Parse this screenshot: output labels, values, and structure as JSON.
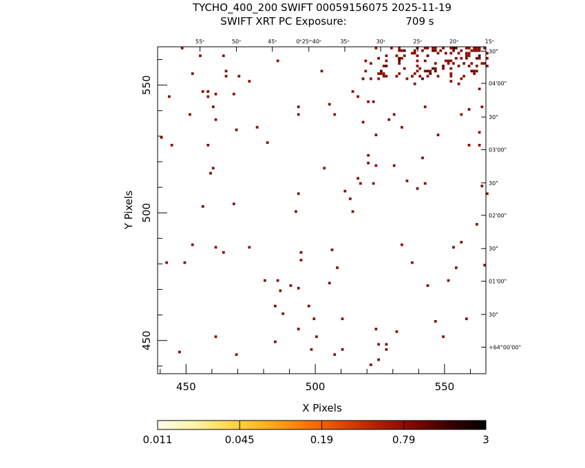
{
  "header": {
    "title_line1": "TYCHO_400_200 SWIFT 00059156075 2025-11-19",
    "title_line2": "SWIFT XRT PC Exposure:",
    "exposure_value": "709 s"
  },
  "colors": {
    "background": "#ffffff",
    "event": "#8b0d00",
    "event_dark": "#5a0000",
    "frame": "#000000"
  },
  "chart_data": {
    "type": "heatmap",
    "xlabel": "X Pixels",
    "ylabel": "Y Pixels",
    "xlim": [
      439,
      566
    ],
    "ylim": [
      437,
      565
    ],
    "x_ticks": [
      450,
      500,
      550
    ],
    "y_ticks": [
      450,
      500,
      550
    ],
    "ra_ticks": [
      {
        "x": 455.4,
        "label": "55ˢ"
      },
      {
        "x": 469.5,
        "label": "50ˢ"
      },
      {
        "x": 483.4,
        "label": "45ˢ"
      },
      {
        "x": 497.5,
        "label": "0ʰ25ᵐ40ˢ"
      },
      {
        "x": 511.4,
        "label": "35ˢ"
      },
      {
        "x": 525.3,
        "label": "30ˢ"
      },
      {
        "x": 539.6,
        "label": "25ˢ"
      },
      {
        "x": 553.6,
        "label": "20ˢ"
      },
      {
        "x": 567.4,
        "label": "15ˢ"
      }
    ],
    "dec_ticks": [
      {
        "y": 563.3,
        "label": "30\""
      },
      {
        "y": 550.7,
        "label": "04'00\""
      },
      {
        "y": 537.5,
        "label": "30\""
      },
      {
        "y": 524.7,
        "label": "03'00\""
      },
      {
        "y": 511.7,
        "label": "30\""
      },
      {
        "y": 499.0,
        "label": "02'00\""
      },
      {
        "y": 486.0,
        "label": "30\""
      },
      {
        "y": 473.2,
        "label": "01'00\""
      },
      {
        "y": 460.2,
        "label": "30\""
      },
      {
        "y": 447.4,
        "label": "+64°00'00\""
      }
    ],
    "colorbar": {
      "tick_labels": [
        "0.011",
        "0.045",
        "0.19",
        "0.79",
        "3"
      ],
      "scale": "log",
      "colors": [
        "#fffde8",
        "#fff3a8",
        "#ffd84a",
        "#ffb020",
        "#ff7a0a",
        "#e04a00",
        "#b02000",
        "#7d0800",
        "#3a0000",
        "#000000"
      ]
    },
    "events": [
      [
        448,
        564
      ],
      [
        455,
        561
      ],
      [
        452,
        554
      ],
      [
        443,
        545
      ],
      [
        451,
        538
      ],
      [
        456,
        547
      ],
      [
        458,
        547
      ],
      [
        458,
        545
      ],
      [
        461,
        546
      ],
      [
        460,
        541
      ],
      [
        461,
        536
      ],
      [
        464,
        561
      ],
      [
        465,
        555
      ],
      [
        465,
        553
      ],
      [
        470,
        553
      ],
      [
        468,
        546
      ],
      [
        469,
        532
      ],
      [
        474,
        551
      ],
      [
        477,
        533
      ],
      [
        481,
        527
      ],
      [
        485,
        559
      ],
      [
        493,
        541
      ],
      [
        493,
        538
      ],
      [
        502,
        555
      ],
      [
        505,
        542
      ],
      [
        507,
        538
      ],
      [
        514,
        547
      ],
      [
        516,
        545
      ],
      [
        518,
        552
      ],
      [
        518,
        535
      ],
      [
        520,
        543
      ],
      [
        522,
        543
      ],
      [
        520,
        522
      ],
      [
        523,
        518
      ],
      [
        523,
        530
      ],
      [
        528,
        536
      ],
      [
        530,
        538
      ],
      [
        533,
        533
      ],
      [
        538,
        550
      ],
      [
        538,
        554
      ],
      [
        542,
        541
      ],
      [
        542,
        559
      ],
      [
        547,
        530
      ],
      [
        552,
        551
      ],
      [
        555,
        550
      ],
      [
        556,
        538
      ],
      [
        559,
        540
      ],
      [
        561,
        555
      ],
      [
        563,
        548
      ],
      [
        564,
        541
      ],
      [
        563,
        531
      ],
      [
        563,
        526
      ],
      [
        440,
        529
      ],
      [
        444,
        526
      ],
      [
        458,
        526
      ],
      [
        460,
        517
      ],
      [
        459,
        515
      ],
      [
        456,
        502
      ],
      [
        468,
        503
      ],
      [
        461,
        486
      ],
      [
        464,
        484
      ],
      [
        474,
        486
      ],
      [
        480,
        473
      ],
      [
        485,
        473
      ],
      [
        487,
        460
      ],
      [
        486,
        469
      ],
      [
        494,
        484
      ],
      [
        493,
        454
      ],
      [
        494,
        481
      ],
      [
        493,
        470
      ],
      [
        492,
        500
      ],
      [
        493,
        507
      ],
      [
        497,
        463
      ],
      [
        499,
        458
      ],
      [
        500,
        451
      ],
      [
        503,
        517
      ],
      [
        505,
        472
      ],
      [
        506,
        485
      ],
      [
        508,
        478
      ],
      [
        510,
        458
      ],
      [
        511,
        508
      ],
      [
        513,
        505
      ],
      [
        514,
        500
      ],
      [
        516,
        513
      ],
      [
        517,
        511
      ],
      [
        520,
        519
      ],
      [
        522,
        511
      ],
      [
        523,
        454
      ],
      [
        524,
        442
      ],
      [
        527,
        448
      ],
      [
        530,
        518
      ],
      [
        531,
        453
      ],
      [
        533,
        487
      ],
      [
        535,
        512
      ],
      [
        537,
        480
      ],
      [
        539,
        509
      ],
      [
        541,
        521
      ],
      [
        542,
        511
      ],
      [
        543,
        471
      ],
      [
        546,
        457
      ],
      [
        549,
        451
      ],
      [
        551,
        473
      ],
      [
        553,
        486
      ],
      [
        554,
        478
      ],
      [
        556,
        488
      ],
      [
        558,
        458
      ],
      [
        559,
        526
      ],
      [
        562,
        495
      ],
      [
        564,
        510
      ],
      [
        566,
        507
      ],
      [
        565,
        479
      ],
      [
        447,
        445
      ],
      [
        449,
        480
      ],
      [
        442,
        480
      ],
      [
        452,
        487
      ],
      [
        461,
        451
      ],
      [
        469,
        444
      ],
      [
        484,
        449
      ],
      [
        484,
        463
      ],
      [
        490,
        471
      ],
      [
        498,
        446
      ],
      [
        507,
        444
      ],
      [
        510,
        446
      ],
      [
        521,
        440
      ],
      [
        524,
        448
      ],
      [
        527,
        446
      ]
    ],
    "dense_region": {
      "x": [
        518,
        566
      ],
      "y": [
        552,
        565
      ]
    }
  }
}
